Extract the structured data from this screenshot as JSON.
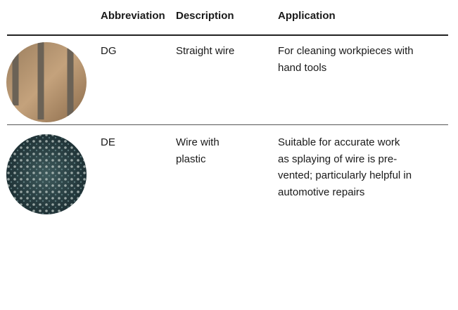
{
  "table": {
    "header": [
      "Abbreviation",
      "Description",
      "Application"
    ],
    "rows": [
      {
        "abbreviation": "DG",
        "description": [
          "Straight wire"
        ],
        "application": [
          "For cleaning workpieces with",
          "hand tools"
        ]
      },
      {
        "abbreviation": "DE",
        "description": [
          "Wire with",
          "plastic"
        ],
        "application": [
          "Suitable for accurate work",
          "as splaying of wire is pre-",
          "vented; particularly helpful in",
          "automotive repairs"
        ]
      }
    ]
  }
}
